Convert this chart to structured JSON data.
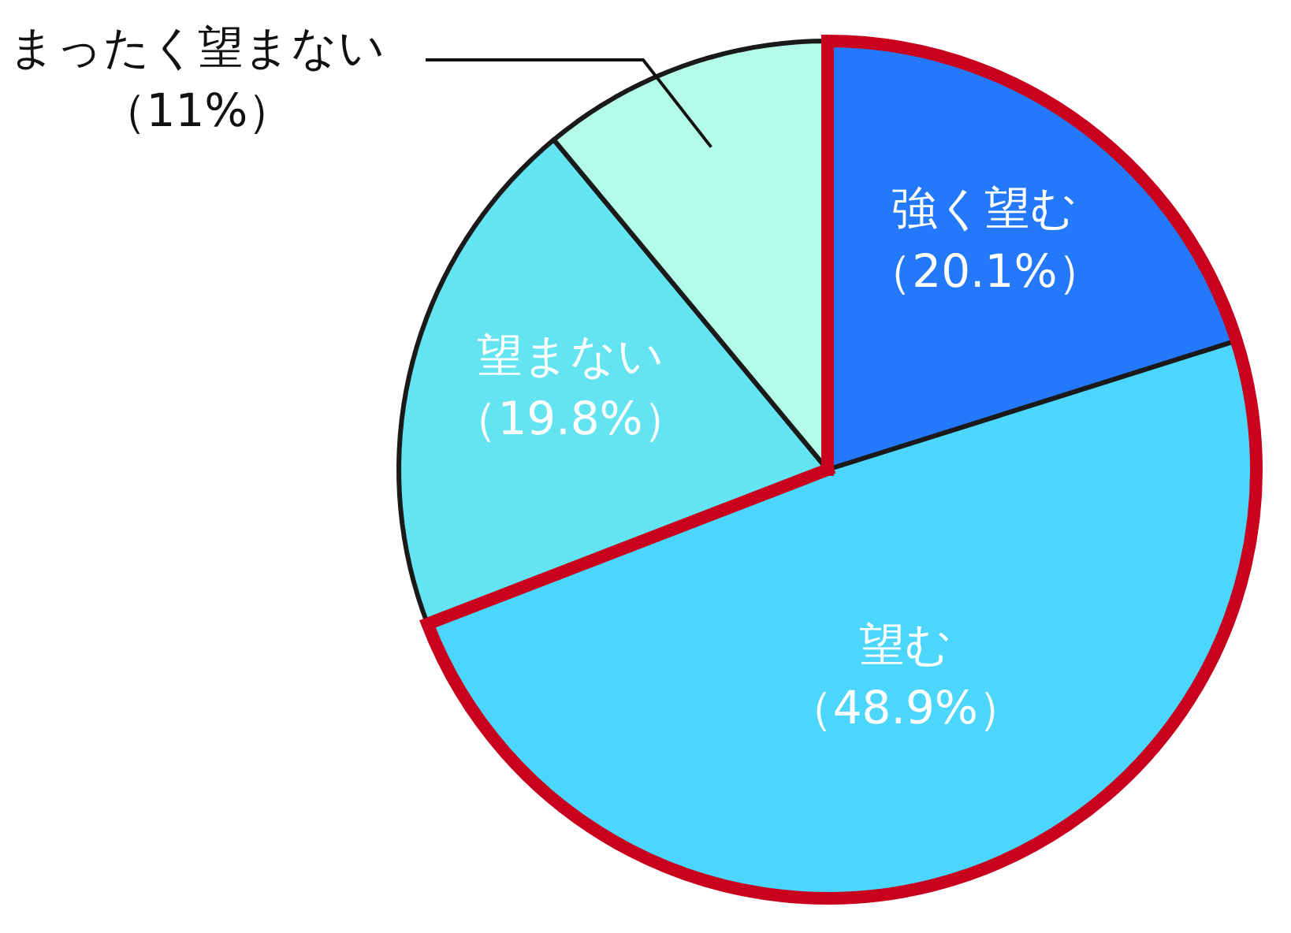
{
  "chart_data": {
    "type": "pie",
    "categories": [
      "強く望む",
      "望む",
      "望まない",
      "まったく望まない"
    ],
    "values": [
      20.1,
      48.9,
      19.8,
      11
    ],
    "value_labels": [
      "（20.1%）",
      "（48.9%）",
      "（19.8%）",
      "（11%）"
    ],
    "colors": [
      "#2479fa",
      "#4cd6fc",
      "#64e4f1",
      "#b3fbe6"
    ],
    "legend": false
  }
}
